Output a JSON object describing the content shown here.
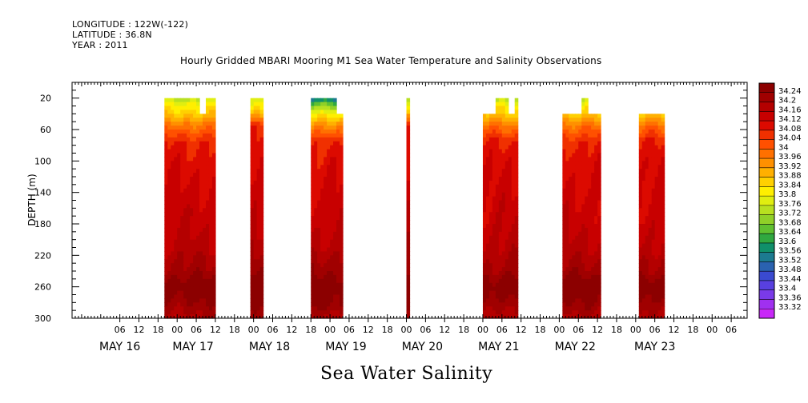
{
  "header": {
    "longitude": "LONGITUDE : 122W(-122)",
    "latitude": "LATITUDE : 36.8N",
    "year": "YEAR : 2011"
  },
  "chart_data": {
    "type": "heatmap",
    "title": "Hourly Gridded MBARI Mooring M1 Sea Water Temperature and Salinity Observations",
    "variable_title": "Sea Water Salinity",
    "xlabel": "",
    "ylabel": "DEPTH (m)",
    "ylim": [
      300,
      0
    ],
    "y_ticks": [
      20,
      60,
      100,
      140,
      180,
      220,
      260,
      300
    ],
    "x_start_hours": 0,
    "x_end_hours": 198,
    "x_ticks": [
      {
        "label": "06",
        "hour": 6
      },
      {
        "label": "12",
        "hour": 12
      },
      {
        "label": "18",
        "hour": 18
      },
      {
        "label": "00",
        "hour": 24
      },
      {
        "label": "06",
        "hour": 30
      },
      {
        "label": "12",
        "hour": 36
      },
      {
        "label": "18",
        "hour": 42
      },
      {
        "label": "00",
        "hour": 48
      },
      {
        "label": "06",
        "hour": 54
      },
      {
        "label": "12",
        "hour": 60
      },
      {
        "label": "18",
        "hour": 66
      },
      {
        "label": "00",
        "hour": 72
      },
      {
        "label": "06",
        "hour": 78
      },
      {
        "label": "12",
        "hour": 84
      },
      {
        "label": "18",
        "hour": 90
      },
      {
        "label": "00",
        "hour": 96
      },
      {
        "label": "06",
        "hour": 102
      },
      {
        "label": "12",
        "hour": 108
      },
      {
        "label": "18",
        "hour": 114
      },
      {
        "label": "00",
        "hour": 120
      },
      {
        "label": "06",
        "hour": 126
      },
      {
        "label": "12",
        "hour": 132
      },
      {
        "label": "18",
        "hour": 138
      },
      {
        "label": "00",
        "hour": 144
      },
      {
        "label": "06",
        "hour": 150
      },
      {
        "label": "12",
        "hour": 156
      },
      {
        "label": "18",
        "hour": 162
      },
      {
        "label": "00",
        "hour": 168
      },
      {
        "label": "06",
        "hour": 174
      },
      {
        "label": "12",
        "hour": 180
      },
      {
        "label": "18",
        "hour": 186
      },
      {
        "label": "00",
        "hour": 192
      },
      {
        "label": "06",
        "hour": 198
      }
    ],
    "day_labels": [
      {
        "label": "MAY 16",
        "hour": 6
      },
      {
        "label": "MAY 17",
        "hour": 29
      },
      {
        "label": "MAY 18",
        "hour": 53
      },
      {
        "label": "MAY 19",
        "hour": 77
      },
      {
        "label": "MAY 20",
        "hour": 101
      },
      {
        "label": "MAY 21",
        "hour": 125
      },
      {
        "label": "MAY 22",
        "hour": 149
      },
      {
        "label": "MAY 23",
        "hour": 174
      }
    ],
    "colorbar": {
      "labels": [
        "34.24",
        "34.2",
        "34.16",
        "34.12",
        "34.08",
        "34.04",
        "34",
        "33.96",
        "33.92",
        "33.88",
        "33.84",
        "33.8",
        "33.76",
        "33.72",
        "33.68",
        "33.64",
        "33.6",
        "33.56",
        "33.52",
        "33.48",
        "33.44",
        "33.4",
        "33.36",
        "33.32"
      ],
      "colors": [
        "#8c0000",
        "#a00000",
        "#b40000",
        "#c80000",
        "#dc0a00",
        "#f03000",
        "#ff5000",
        "#ff7000",
        "#ff9000",
        "#ffb000",
        "#ffd000",
        "#ffef00",
        "#e0ee10",
        "#b8e020",
        "#90d028",
        "#60c030",
        "#30a840",
        "#10906a",
        "#1c7a90",
        "#2a62b0",
        "#3a4ad0",
        "#5840e0",
        "#7a3ae8",
        "#a030f0",
        "#c828f8"
      ],
      "range": [
        33.32,
        34.24
      ]
    },
    "profiles": {
      "levels": [
        0,
        20,
        30,
        40,
        55,
        75,
        100,
        140,
        180,
        210,
        240,
        260,
        280,
        300
      ],
      "A": [
        33.74,
        33.74,
        33.82,
        33.86,
        33.96,
        34.05,
        34.08,
        34.1,
        34.12,
        34.14,
        34.18,
        34.24,
        34.2,
        34.15
      ],
      "B": [
        33.55,
        33.55,
        33.7,
        33.8,
        33.92,
        34.04,
        34.07,
        34.1,
        34.12,
        34.15,
        34.2,
        34.24,
        34.22,
        34.15
      ],
      "C": [
        33.76,
        33.76,
        33.8,
        33.88,
        34.05,
        34.08,
        34.1,
        34.12,
        34.13,
        34.16,
        34.2,
        34.24,
        34.21,
        34.16
      ]
    },
    "segments": [
      {
        "start": 20,
        "end": 30,
        "top": 20,
        "profile": "A"
      },
      {
        "start": 30,
        "end": 31,
        "top": 20,
        "profile": "A"
      },
      {
        "start": 31,
        "end": 33,
        "top": 40,
        "profile": "A"
      },
      {
        "start": 33,
        "end": 36,
        "top": 20,
        "profile": "A"
      },
      {
        "start": 47,
        "end": 51,
        "top": 20,
        "profile": "C"
      },
      {
        "start": 66,
        "end": 74,
        "top": 20,
        "profile": "B"
      },
      {
        "start": 74,
        "end": 76,
        "top": 40,
        "profile": "B"
      },
      {
        "start": 96,
        "end": 97,
        "top": 20,
        "profile": "C"
      },
      {
        "start": 120,
        "end": 124,
        "top": 40,
        "profile": "A"
      },
      {
        "start": 124,
        "end": 128,
        "top": 20,
        "profile": "A"
      },
      {
        "start": 128,
        "end": 130,
        "top": 40,
        "profile": "A"
      },
      {
        "start": 130,
        "end": 131,
        "top": 20,
        "profile": "A"
      },
      {
        "start": 145,
        "end": 151,
        "top": 40,
        "profile": "A"
      },
      {
        "start": 151,
        "end": 153,
        "top": 20,
        "profile": "A"
      },
      {
        "start": 153,
        "end": 157,
        "top": 40,
        "profile": "A"
      },
      {
        "start": 169,
        "end": 177,
        "top": 40,
        "profile": "A"
      }
    ]
  }
}
